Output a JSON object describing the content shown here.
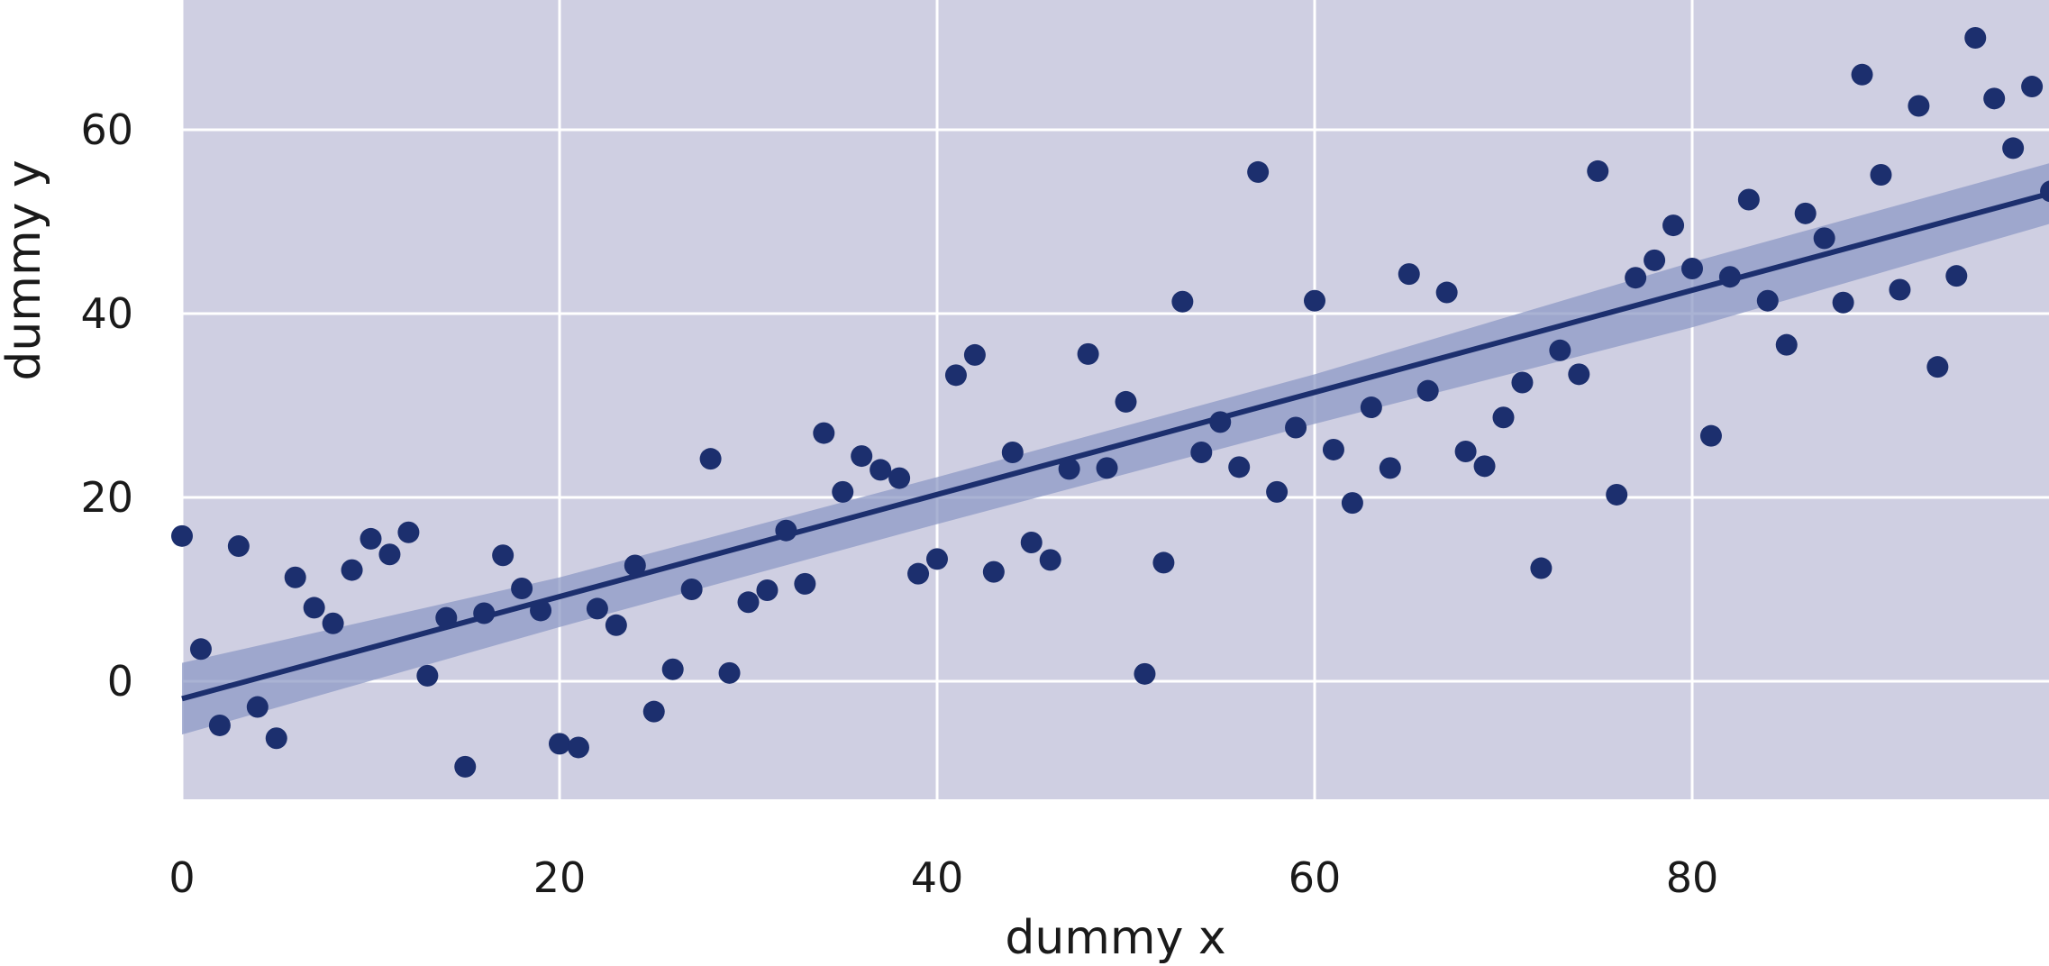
{
  "chart_data": {
    "type": "scatter",
    "title": "",
    "xlabel": "dummy x",
    "ylabel": "dummy y",
    "xlim": [
      0,
      99
    ],
    "ylim": [
      -13,
      74
    ],
    "x_ticks": [
      0,
      20,
      40,
      60,
      80
    ],
    "y_ticks": [
      0,
      20,
      40,
      60
    ],
    "grid": true,
    "colors": {
      "background": "#cfcfe2",
      "grid": "#ffffff",
      "points": "#1c2f6e",
      "fit_line": "#1c2f6e",
      "confidence_band": "#8d9ac6"
    },
    "series": [
      {
        "points": [
          [
            0,
            15.8
          ],
          [
            1,
            3.5
          ],
          [
            2,
            -4.8
          ],
          [
            3,
            14.7
          ],
          [
            4,
            -2.8
          ],
          [
            5,
            -6.2
          ],
          [
            6,
            11.3
          ],
          [
            7,
            8.0
          ],
          [
            8,
            6.3
          ],
          [
            9,
            12.1
          ],
          [
            10,
            15.5
          ],
          [
            11,
            13.8
          ],
          [
            12,
            16.2
          ],
          [
            13,
            0.6
          ],
          [
            14,
            6.9
          ],
          [
            15,
            -9.3
          ],
          [
            16,
            7.4
          ],
          [
            17,
            13.7
          ],
          [
            18,
            10.1
          ],
          [
            19,
            7.7
          ],
          [
            20,
            -6.8
          ],
          [
            21,
            -7.2
          ],
          [
            22,
            7.9
          ],
          [
            23,
            6.1
          ],
          [
            24,
            12.6
          ],
          [
            25,
            -3.3
          ],
          [
            26,
            1.3
          ],
          [
            27,
            10.0
          ],
          [
            28,
            24.2
          ],
          [
            29,
            0.9
          ],
          [
            30,
            8.6
          ],
          [
            31,
            9.9
          ],
          [
            32,
            16.4
          ],
          [
            33,
            10.6
          ],
          [
            34,
            27.0
          ],
          [
            35,
            20.6
          ],
          [
            36,
            24.5
          ],
          [
            37,
            23.0
          ],
          [
            38,
            22.1
          ],
          [
            39,
            11.7
          ],
          [
            40,
            13.3
          ],
          [
            41,
            33.3
          ],
          [
            42,
            35.5
          ],
          [
            43,
            11.9
          ],
          [
            44,
            24.9
          ],
          [
            45,
            15.1
          ],
          [
            46,
            13.2
          ],
          [
            47,
            23.1
          ],
          [
            48,
            35.6
          ],
          [
            49,
            23.2
          ],
          [
            50,
            30.4
          ],
          [
            51,
            0.8
          ],
          [
            52,
            12.9
          ],
          [
            53,
            41.3
          ],
          [
            54,
            24.9
          ],
          [
            55,
            28.2
          ],
          [
            56,
            23.3
          ],
          [
            57,
            55.4
          ],
          [
            58,
            20.6
          ],
          [
            59,
            27.6
          ],
          [
            60,
            41.4
          ],
          [
            61,
            25.2
          ],
          [
            62,
            19.4
          ],
          [
            63,
            29.8
          ],
          [
            64,
            23.2
          ],
          [
            65,
            44.3
          ],
          [
            66,
            31.6
          ],
          [
            67,
            42.3
          ],
          [
            68,
            25.0
          ],
          [
            69,
            23.4
          ],
          [
            70,
            28.7
          ],
          [
            71,
            32.5
          ],
          [
            72,
            12.3
          ],
          [
            73,
            36.0
          ],
          [
            74,
            33.4
          ],
          [
            75,
            55.5
          ],
          [
            76,
            20.3
          ],
          [
            77,
            43.9
          ],
          [
            78,
            45.8
          ],
          [
            79,
            49.6
          ],
          [
            80,
            44.9
          ],
          [
            81,
            26.7
          ],
          [
            82,
            44.0
          ],
          [
            83,
            52.4
          ],
          [
            84,
            41.4
          ],
          [
            85,
            36.6
          ],
          [
            86,
            50.9
          ],
          [
            87,
            48.2
          ],
          [
            88,
            41.2
          ],
          [
            89,
            66.0
          ],
          [
            90,
            55.1
          ],
          [
            91,
            42.6
          ],
          [
            92,
            62.6
          ],
          [
            93,
            34.2
          ],
          [
            94,
            44.1
          ],
          [
            95,
            70.0
          ],
          [
            96,
            63.4
          ],
          [
            97,
            58.0
          ],
          [
            98,
            64.7
          ],
          [
            99,
            53.3
          ]
        ]
      }
    ],
    "regression_line": {
      "x": [
        0,
        99
      ],
      "y": [
        -1.9,
        53.1
      ]
    },
    "confidence_band": {
      "x": [
        0,
        20,
        40,
        60,
        80,
        99
      ],
      "lower": [
        -5.8,
        5.9,
        17.1,
        28.0,
        38.5,
        49.8
      ],
      "upper": [
        2.0,
        11.3,
        22.2,
        33.4,
        45.6,
        56.4
      ]
    }
  }
}
